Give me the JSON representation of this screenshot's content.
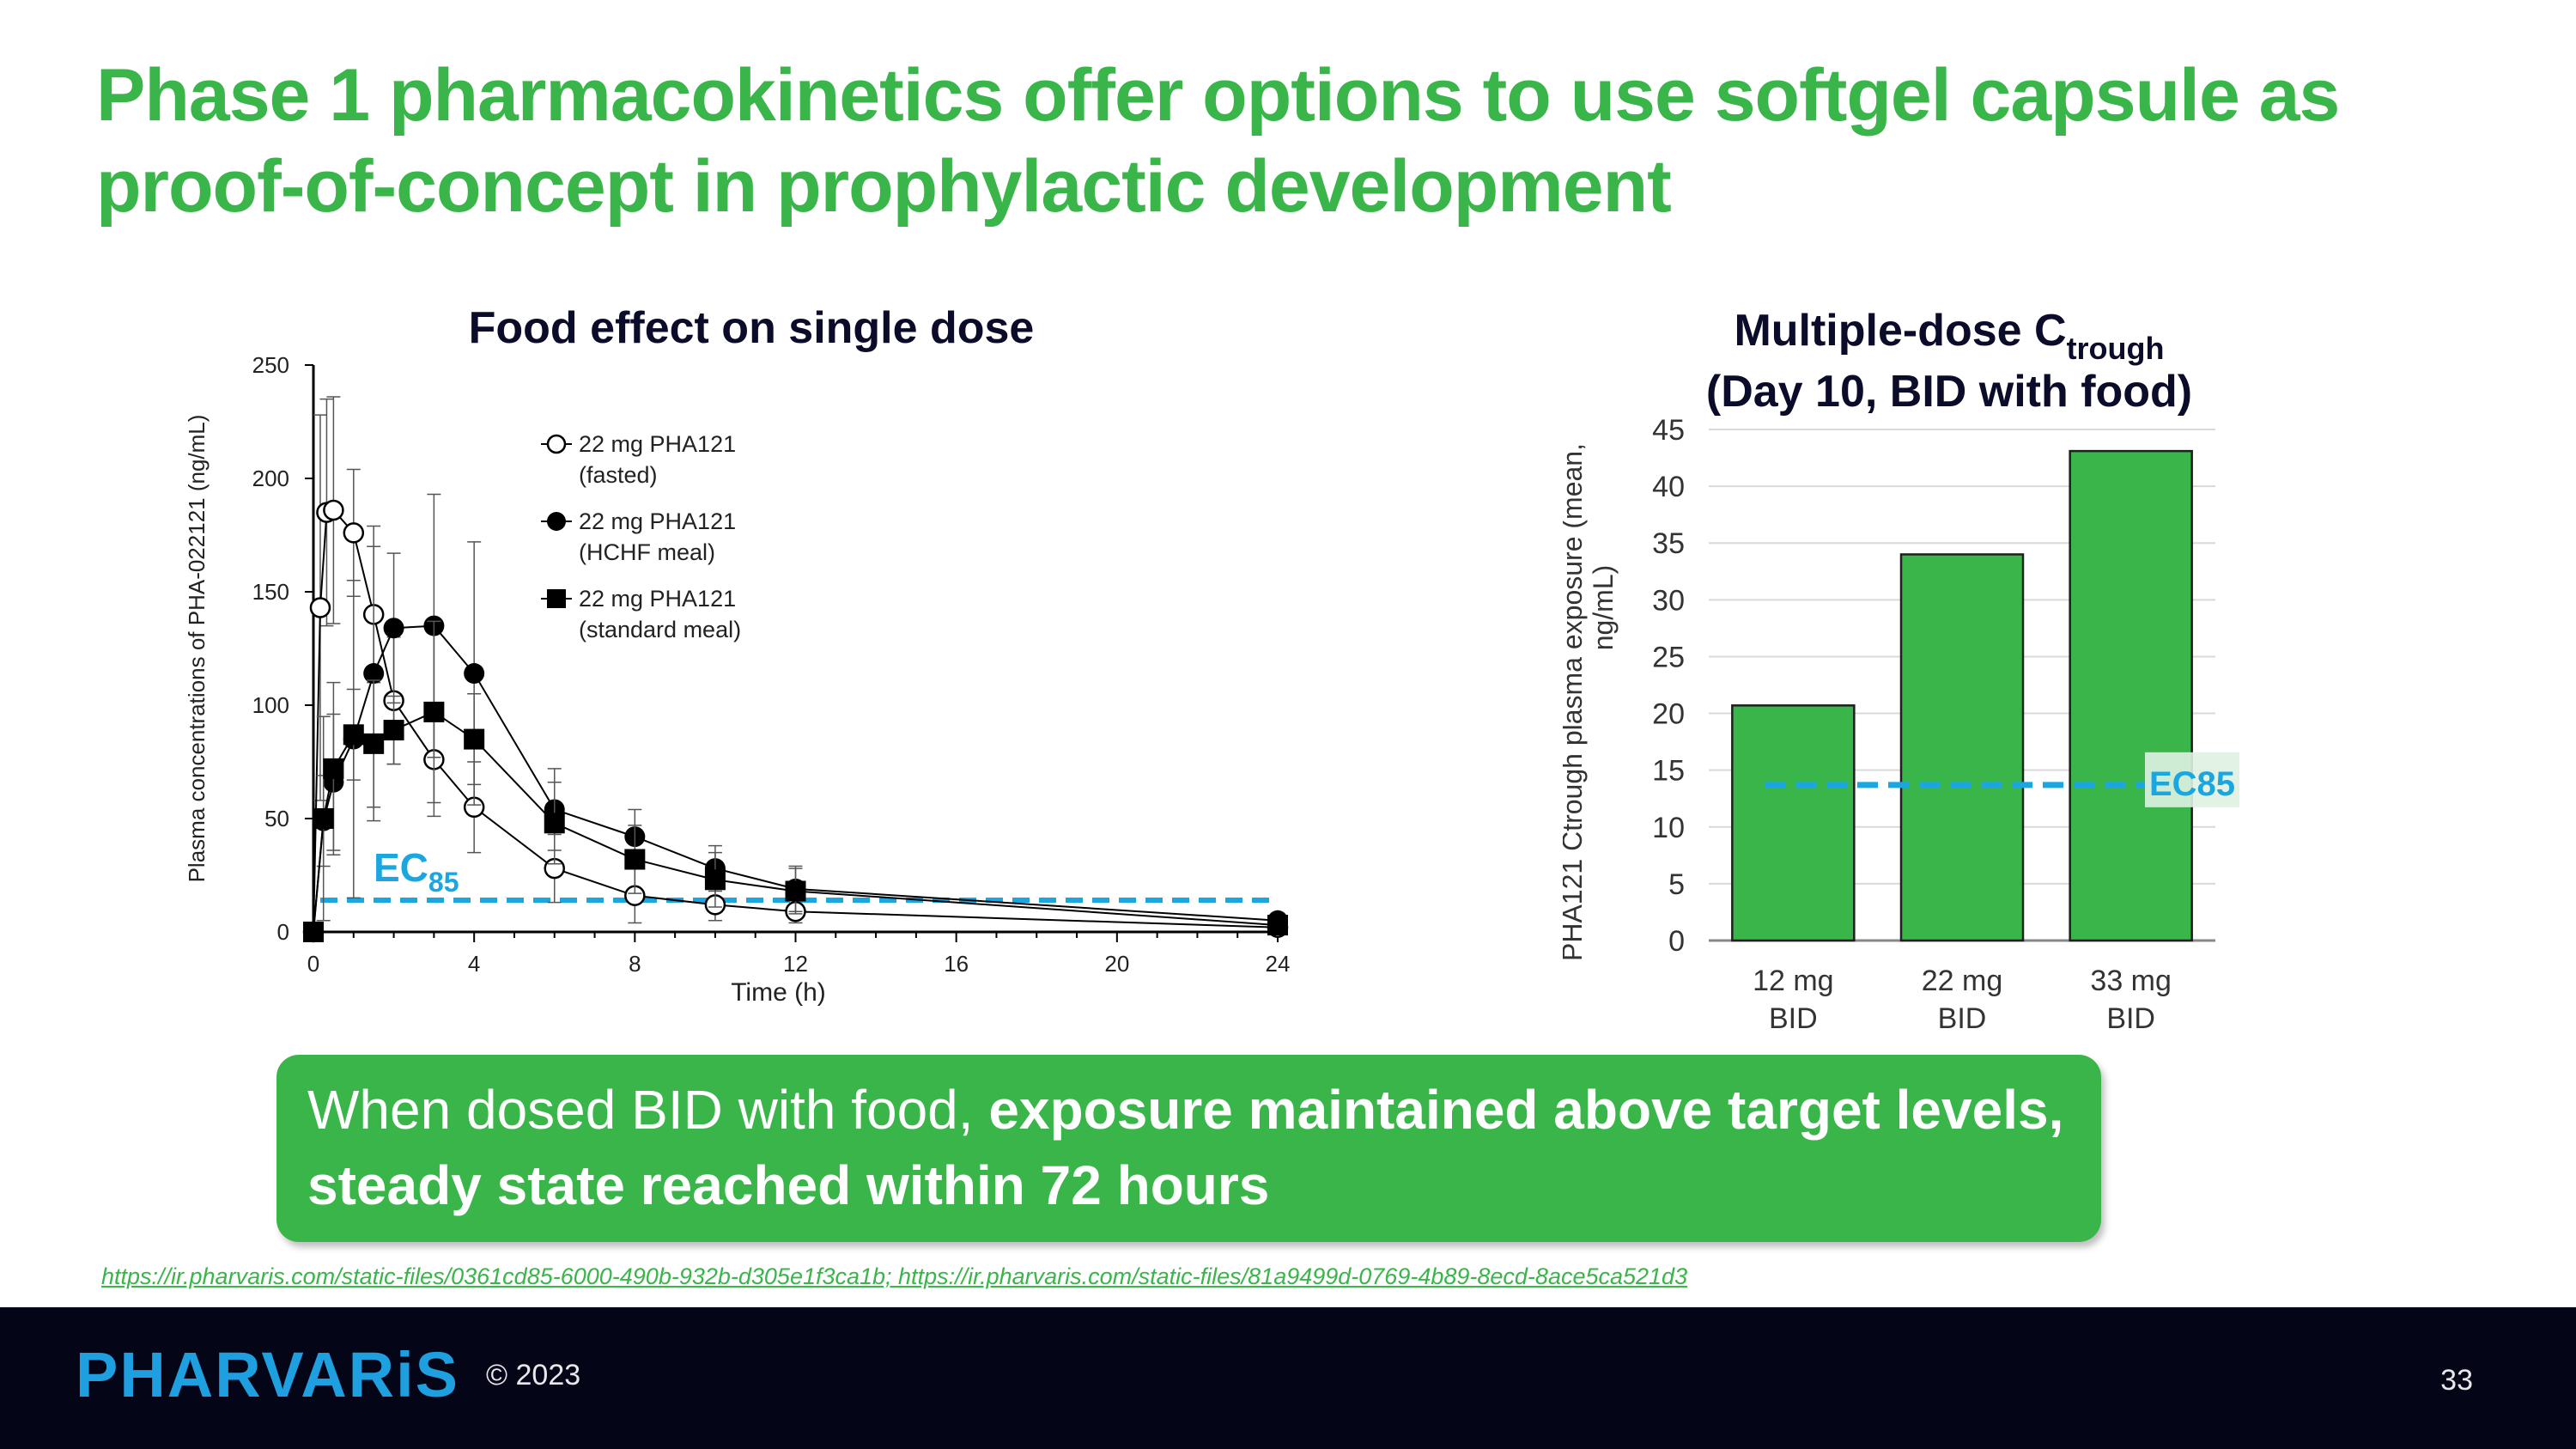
{
  "slide": {
    "title": "Phase 1 pharmacokinetics offer options to use softgel capsule as proof-of-concept in prophylactic development",
    "callout_light": "When dosed BID with food, ",
    "callout_bold": "exposure maintained above target levels, steady state reached within 72 hours",
    "source": "https://ir.pharvaris.com/static-files/0361cd85-6000-490b-932b-d305e1f3ca1b; https://ir.pharvaris.com/static-files/81a9499d-0769-4b89-8ecd-8ace5ca521d3",
    "logo": "PHARVARiS",
    "copyright": "© 2023",
    "page_number": "33"
  },
  "colors": {
    "green": "#3ab54a",
    "ec_blue": "#1ba6e0",
    "navy": "#050518",
    "logo_blue": "#1e9fe0"
  },
  "chart_data": [
    {
      "type": "line",
      "title": "Food effect on single dose",
      "xlabel": "Time (h)",
      "ylabel": "Plasma concentrations of PHA-022121 (ng/mL)",
      "xlim": [
        0,
        24
      ],
      "ylim": [
        0,
        250
      ],
      "xticks": [
        0,
        4,
        8,
        12,
        16,
        20,
        24
      ],
      "yticks": [
        0,
        50,
        100,
        150,
        200,
        250
      ],
      "legend_position": "top-center",
      "threshold": {
        "label": "EC",
        "subscript": "85",
        "value": 14
      },
      "series": [
        {
          "name": "22 mg PHA121 (fasted)",
          "legend_lines": [
            "22 mg PHA121",
            "(fasted)"
          ],
          "marker": "open-circle",
          "x": [
            0.0,
            0.17,
            0.33,
            0.5,
            1.0,
            1.5,
            2.0,
            3.0,
            4.0,
            6.0,
            8.0,
            10.0,
            12.0,
            24.0
          ],
          "y": [
            0,
            143,
            185,
            186,
            176,
            140,
            102,
            76,
            55,
            28,
            16,
            12,
            9,
            2
          ],
          "err": [
            0,
            85,
            50,
            50,
            28,
            30,
            28,
            25,
            20,
            15,
            12,
            7,
            5,
            1
          ]
        },
        {
          "name": "22 mg PHA121 (HCHF meal)",
          "legend_lines": [
            "22 mg PHA121",
            "(HCHF meal)"
          ],
          "marker": "filled-circle",
          "x": [
            0.0,
            0.25,
            0.5,
            1.0,
            1.5,
            2.0,
            3.0,
            4.0,
            6.0,
            8.0,
            10.0,
            12.0,
            24.0
          ],
          "y": [
            0,
            49,
            66,
            85,
            114,
            134,
            135,
            114,
            54,
            42,
            28,
            19,
            5
          ],
          "err": [
            0,
            20,
            30,
            70,
            65,
            33,
            58,
            58,
            18,
            12,
            10,
            10,
            3
          ]
        },
        {
          "name": "22 mg PHA121 (standard meal)",
          "legend_lines": [
            "22 mg PHA121",
            "(standard meal)"
          ],
          "marker": "filled-square",
          "x": [
            0.0,
            0.25,
            0.5,
            1.0,
            1.5,
            2.0,
            3.0,
            4.0,
            6.0,
            8.0,
            10.0,
            12.0,
            24.0
          ],
          "y": [
            0,
            50,
            72,
            87,
            83,
            89,
            97,
            85,
            48,
            32,
            23,
            18,
            3
          ],
          "err": [
            0,
            45,
            38,
            20,
            28,
            15,
            40,
            20,
            18,
            15,
            12,
            10,
            2
          ]
        }
      ]
    },
    {
      "type": "bar",
      "title_main": "Multiple-dose C",
      "title_sub": "trough",
      "title_line2": "(Day 10, BID with food)",
      "ylabel_line1": "PHA121 Ctrough plasma exposure (mean,",
      "ylabel_line2": "ng/mL)",
      "categories": [
        [
          "12 mg",
          "BID"
        ],
        [
          "22 mg",
          "BID"
        ],
        [
          "33 mg",
          "BID"
        ]
      ],
      "values": [
        20.7,
        34.0,
        43.1
      ],
      "ylim": [
        0,
        45
      ],
      "yticks": [
        0,
        5,
        10,
        15,
        20,
        25,
        30,
        35,
        40,
        45
      ],
      "grid": true,
      "threshold": {
        "label": "EC85",
        "value": 13.7
      }
    }
  ]
}
